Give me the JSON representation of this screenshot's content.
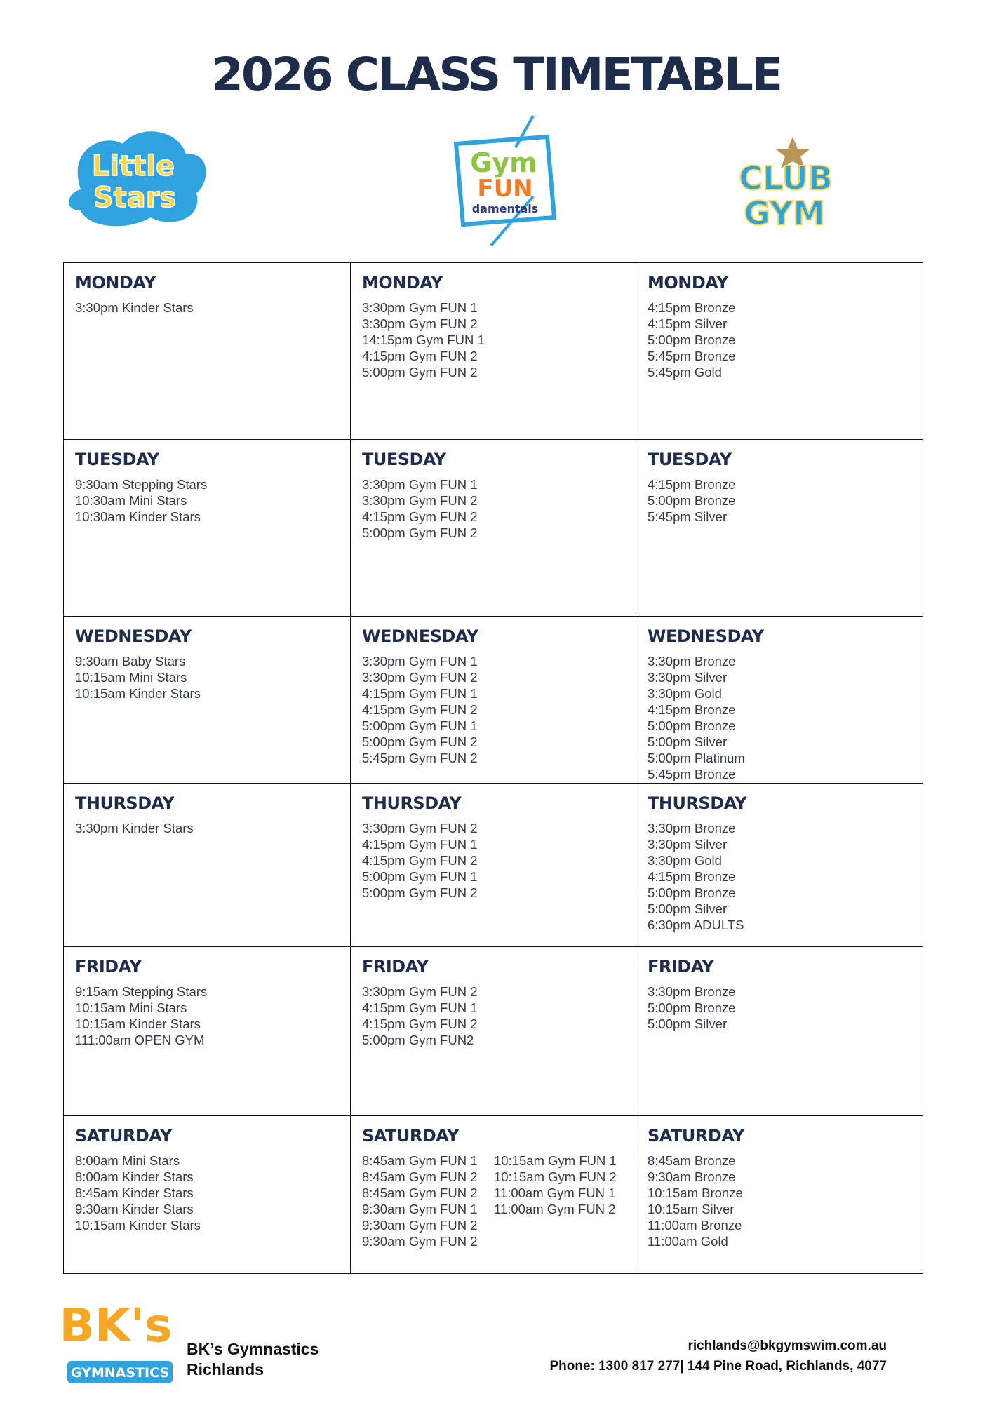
{
  "header": {
    "title": "2026 CLASS TIMETABLE"
  },
  "logos": {
    "little_stars": [
      "Little",
      "Stars"
    ],
    "gym_fun": [
      "Gym",
      "FUN",
      "damentals"
    ],
    "club_gym": [
      "CLUB",
      "GYM"
    ]
  },
  "table": {
    "rows": [
      {
        "cells": [
          {
            "day": "MONDAY",
            "columns": [
              [
                "3:30pm Kinder Stars"
              ]
            ]
          },
          {
            "day": "MONDAY",
            "columns": [
              [
                "3:30pm Gym FUN 1",
                "3:30pm Gym FUN 2",
                "14:15pm Gym FUN 1",
                "4:15pm Gym FUN 2",
                "5:00pm Gym FUN 2"
              ]
            ]
          },
          {
            "day": "MONDAY",
            "columns": [
              [
                "4:15pm Bronze",
                "4:15pm Silver",
                "5:00pm Bronze",
                "5:45pm Bronze",
                "5:45pm Gold"
              ]
            ]
          }
        ]
      },
      {
        "cells": [
          {
            "day": "TUESDAY",
            "columns": [
              [
                "9:30am Stepping Stars",
                "10:30am Mini Stars",
                "10:30am Kinder Stars"
              ]
            ]
          },
          {
            "day": "TUESDAY",
            "columns": [
              [
                "3:30pm Gym FUN 1",
                "3:30pm Gym FUN 2",
                "4:15pm Gym FUN 2",
                "5:00pm Gym FUN 2"
              ]
            ]
          },
          {
            "day": "TUESDAY",
            "columns": [
              [
                "4:15pm Bronze",
                "5:00pm Bronze",
                "5:45pm Silver"
              ]
            ]
          }
        ]
      },
      {
        "cells": [
          {
            "day": "WEDNESDAY",
            "columns": [
              [
                "9:30am Baby Stars",
                "10:15am Mini Stars",
                "10:15am Kinder Stars"
              ]
            ]
          },
          {
            "day": "WEDNESDAY",
            "columns": [
              [
                "3:30pm Gym FUN 1",
                "3:30pm Gym FUN 2",
                "4:15pm Gym FUN 1",
                "4:15pm Gym FUN 2",
                "5:00pm Gym FUN 1",
                "5:00pm Gym FUN 2",
                "5:45pm Gym FUN 2"
              ]
            ]
          },
          {
            "day": "WEDNESDAY",
            "columns": [
              [
                "3:30pm Bronze",
                "3:30pm Silver",
                "3:30pm Gold",
                "4:15pm Bronze",
                "5:00pm Bronze",
                "5:00pm Silver",
                "5:00pm Platinum",
                "5:45pm Bronze"
              ]
            ]
          }
        ]
      },
      {
        "cells": [
          {
            "day": "THURSDAY",
            "columns": [
              [
                "3:30pm Kinder Stars"
              ]
            ]
          },
          {
            "day": "THURSDAY",
            "columns": [
              [
                "3:30pm Gym FUN 2",
                "4:15pm Gym FUN 1",
                "4:15pm Gym FUN 2",
                "5:00pm Gym FUN 1",
                "5:00pm Gym FUN 2"
              ]
            ]
          },
          {
            "day": "THURSDAY",
            "columns": [
              [
                "3:30pm Bronze",
                "3:30pm Silver",
                "3:30pm Gold",
                "4:15pm Bronze",
                "5:00pm Bronze",
                "5:00pm Silver",
                "6:30pm ADULTS"
              ]
            ]
          }
        ]
      },
      {
        "cells": [
          {
            "day": "FRIDAY",
            "columns": [
              [
                "9:15am Stepping Stars",
                "10:15am Mini Stars",
                "10:15am Kinder Stars",
                "111:00am OPEN GYM"
              ]
            ]
          },
          {
            "day": "FRIDAY",
            "columns": [
              [
                "3:30pm Gym FUN 2",
                "4:15pm Gym FUN 1",
                "4:15pm Gym FUN 2",
                "5:00pm Gym FUN2"
              ]
            ]
          },
          {
            "day": "FRIDAY",
            "columns": [
              [
                "3:30pm Bronze",
                "5:00pm Bronze",
                "5:00pm Silver"
              ]
            ]
          }
        ]
      },
      {
        "cells": [
          {
            "day": "SATURDAY",
            "columns": [
              [
                "8:00am Mini Stars",
                "8:00am Kinder Stars",
                "8:45am Kinder Stars",
                "9:30am Kinder Stars",
                "10:15am Kinder Stars"
              ]
            ]
          },
          {
            "day": "SATURDAY",
            "columns": [
              [
                "8:45am Gym FUN 1",
                "8:45am Gym FUN 2",
                "8:45am Gym FUN 2",
                "9:30am Gym FUN 1",
                "9:30am Gym FUN 2",
                "9:30am Gym FUN 2"
              ],
              [
                "10:15am Gym FUN 1",
                "10:15am Gym FUN 2",
                "11:00am Gym FUN 1",
                "11:00am Gym FUN 2"
              ]
            ]
          },
          {
            "day": "SATURDAY",
            "columns": [
              [
                "8:45am Bronze",
                "9:30am Bronze",
                "10:15am Bronze",
                "10:15am Silver",
                "11:00am Bronze",
                "11:00am Gold"
              ]
            ]
          }
        ]
      }
    ]
  },
  "footer": {
    "logo": [
      "BK's",
      "GYMNASTICS"
    ],
    "name": "BK’s Gymnastics",
    "location": "Richlands",
    "email": "richlands@bkgymswim.com.au",
    "contact": "Phone: 1300 817 277| 144 Pine Road, Richlands, 4077"
  }
}
